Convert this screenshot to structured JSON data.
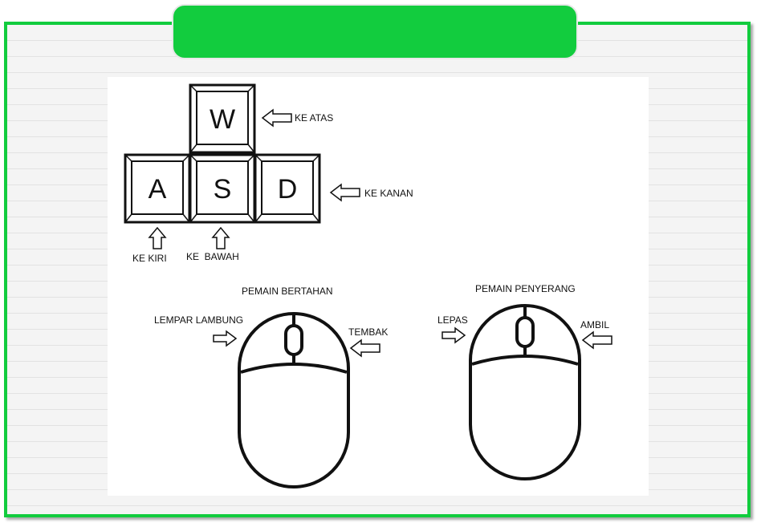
{
  "title": "",
  "keys": {
    "w": "W",
    "a": "A",
    "s": "S",
    "d": "D"
  },
  "key_labels": {
    "up": "KE ATAS",
    "right": "KE KANAN",
    "left": "KE KIRI",
    "down": "KE  BAWAH"
  },
  "defender": {
    "title": "PEMAIN BERTAHAN",
    "left_click": "LEMPAR LAMBUNG",
    "right_click": "TEMBAK"
  },
  "attacker": {
    "title": "PEMAIN PENYERANG",
    "left_click": "LEPAS",
    "right_click": "AMBIL"
  },
  "colors": {
    "accent": "#12cc3e",
    "line": "#111111"
  }
}
